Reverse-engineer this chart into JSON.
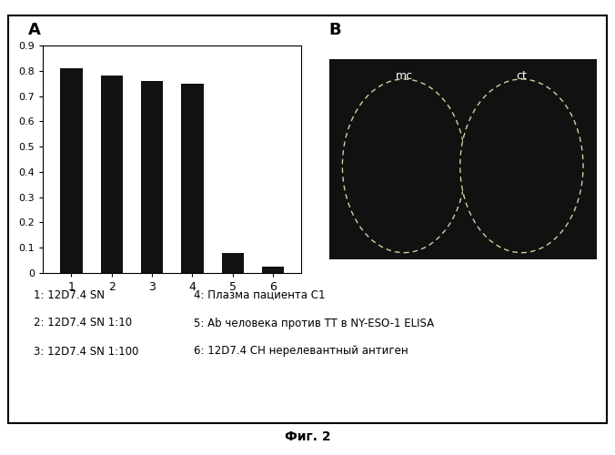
{
  "bar_values": [
    0.81,
    0.78,
    0.76,
    0.75,
    0.08,
    0.025
  ],
  "bar_labels": [
    "1",
    "2",
    "3",
    "4",
    "5",
    "6"
  ],
  "bar_color": "#111111",
  "ylim": [
    0,
    0.9
  ],
  "yticks": [
    0,
    0.1,
    0.2,
    0.3,
    0.4,
    0.5,
    0.6,
    0.7,
    0.8,
    0.9
  ],
  "panel_A_label": "A",
  "panel_B_label": "B",
  "legend_lines": [
    "1: 12D7.4 SN",
    "2: 12D7.4 SN 1:10",
    "3: 12D7.4 SN 1:100"
  ],
  "legend_lines_right": [
    "4: Плазма пациента C1",
    "5: Ab человека против TT в NY-ESO-1 ELISA",
    "6: 12D7.4 CH нерелевантный антиген"
  ],
  "mc_label": "mc",
  "ct_label": "ct",
  "figure_label": "Фиг. 2",
  "outer_bg": "#ffffff",
  "chart_bg": "#ffffff",
  "box_bg": "#111111",
  "dashed_circle_color": "#d0d0a0"
}
